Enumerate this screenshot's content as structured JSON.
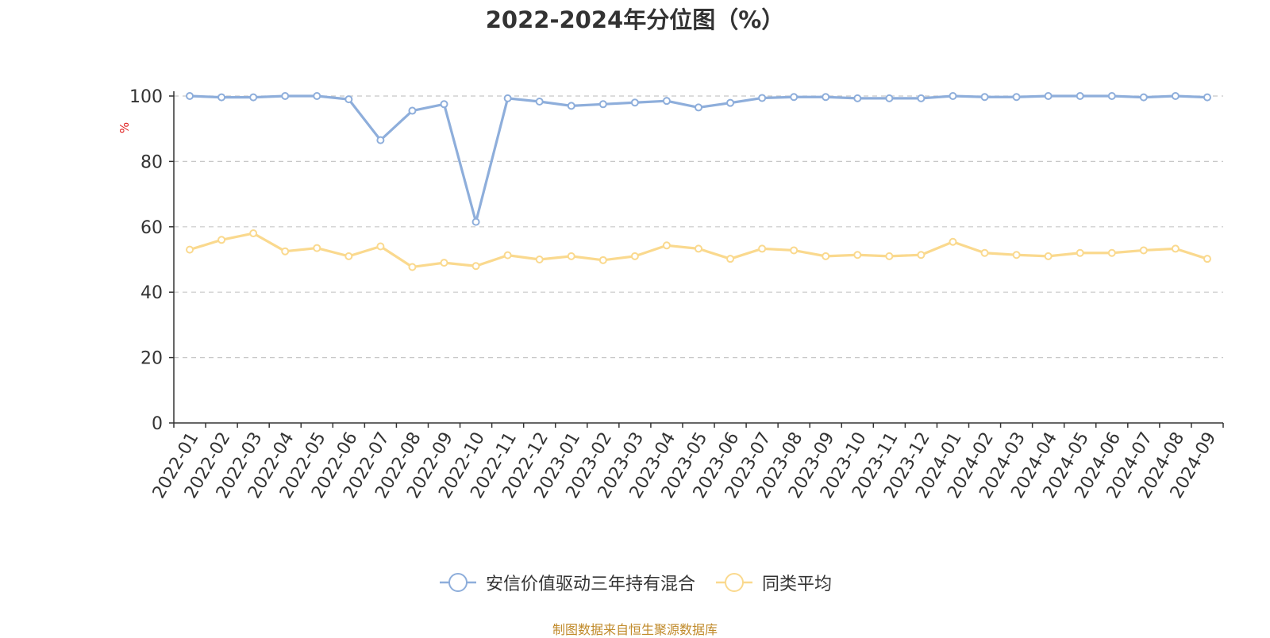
{
  "chart_data": {
    "type": "line",
    "title": "2022-2024年分位图（%）",
    "ylabel": "%",
    "xlabel": "",
    "ylim": [
      0,
      100
    ],
    "yticks": [
      0,
      20,
      40,
      60,
      80,
      100
    ],
    "grid": true,
    "legend_position": "bottom",
    "categories": [
      "2022-01",
      "2022-02",
      "2022-03",
      "2022-04",
      "2022-05",
      "2022-06",
      "2022-07",
      "2022-08",
      "2022-09",
      "2022-10",
      "2022-11",
      "2022-12",
      "2023-01",
      "2023-02",
      "2023-03",
      "2023-04",
      "2023-05",
      "2023-06",
      "2023-07",
      "2023-08",
      "2023-09",
      "2023-10",
      "2023-11",
      "2023-12",
      "2024-01",
      "2024-02",
      "2024-03",
      "2024-04",
      "2024-05",
      "2024-06",
      "2024-07",
      "2024-08",
      "2024-09"
    ],
    "series": [
      {
        "name": "安信价值驱动三年持有混合",
        "color": "#8eaedb",
        "values": [
          100,
          99.6,
          99.6,
          100,
          100,
          99,
          86.5,
          95.5,
          97.5,
          61.5,
          99.3,
          98.3,
          97,
          97.5,
          98,
          98.5,
          96.5,
          97.9,
          99.4,
          99.7,
          99.7,
          99.3,
          99.3,
          99.3,
          100,
          99.7,
          99.7,
          100,
          100,
          100,
          99.6,
          100,
          99.6
        ]
      },
      {
        "name": "同类平均",
        "color": "#fad98e",
        "values": [
          53,
          56,
          58,
          52.5,
          53.5,
          51,
          54,
          47.7,
          49,
          48,
          51.3,
          50,
          51,
          49.8,
          51,
          54.3,
          53.3,
          50.2,
          53.3,
          52.8,
          51,
          51.4,
          51,
          51.4,
          55.4,
          52,
          51.4,
          51,
          52,
          52,
          52.8,
          53.3,
          50.2
        ]
      }
    ]
  },
  "source_note": "制图数据来自恒生聚源数据库"
}
